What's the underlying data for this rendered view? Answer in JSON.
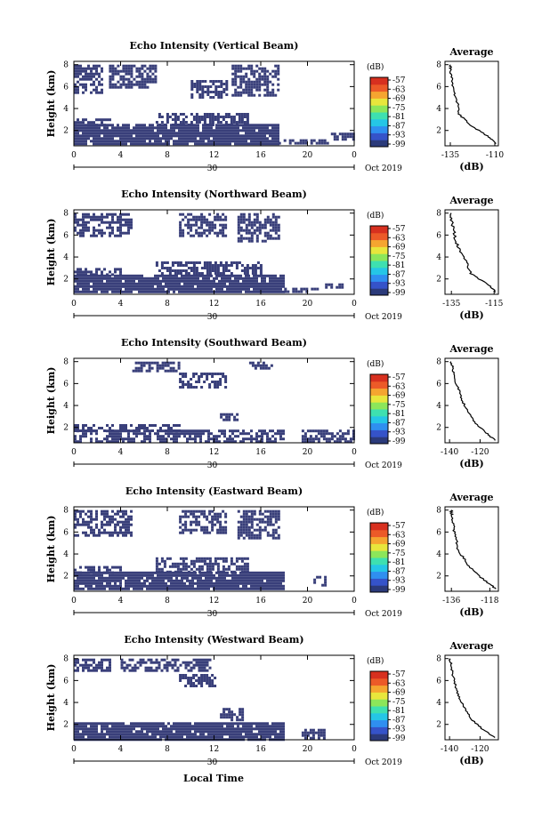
{
  "figure": {
    "xlabel": "Local Time",
    "colors": [
      "#2b3a7a",
      "#3553c9",
      "#2f8ff0",
      "#25c6e6",
      "#3ee0b0",
      "#8ce65a",
      "#e8e63c",
      "#f5a530",
      "#ec5a28",
      "#d7301f"
    ],
    "background": "#ffffff"
  },
  "chart_data": [
    {
      "type": "heatmap",
      "title": "Echo Intensity (Vertical Beam)",
      "ylabel": "Height (km)",
      "x_ticks": [
        "0",
        "4",
        "8",
        "12",
        "16",
        "20",
        "0"
      ],
      "x_range": [
        0,
        24
      ],
      "y_ticks": [
        "2",
        "4",
        "6",
        "8"
      ],
      "y_range": [
        0.6,
        8.3
      ],
      "date_label": "30",
      "month_label": "Oct 2019",
      "colorbar": {
        "label": "(dB)",
        "ticks": [
          "-57",
          "-63",
          "-69",
          "-75",
          "-81",
          "-87",
          "-93",
          "-99"
        ]
      },
      "fill_color": "#393f7a",
      "echo_layers": [
        {
          "t_start": 0,
          "t_end": 17.5,
          "h_bottom": 0.7,
          "h_top": 2.6
        },
        {
          "t_start": 0,
          "t_end": 3,
          "h_bottom": 2.6,
          "h_top": 3.1
        },
        {
          "t_start": 7,
          "t_end": 15,
          "h_bottom": 2.6,
          "h_top": 3.6
        },
        {
          "t_start": 17.5,
          "t_end": 22,
          "h_bottom": 0.8,
          "h_top": 1.2
        },
        {
          "t_start": 22,
          "t_end": 24,
          "h_bottom": 1.3,
          "h_top": 1.8
        },
        {
          "t_start": 0,
          "t_end": 2.5,
          "h_bottom": 5.5,
          "h_top": 8.0
        },
        {
          "t_start": 3,
          "t_end": 7,
          "h_bottom": 6.0,
          "h_top": 8.0
        },
        {
          "t_start": 10,
          "t_end": 13,
          "h_bottom": 5.0,
          "h_top": 6.6
        },
        {
          "t_start": 13.5,
          "t_end": 17.5,
          "h_bottom": 5.2,
          "h_top": 8.0
        }
      ],
      "avg_profile": {
        "title": "Average",
        "xlabel": "(dB)",
        "x_ticks": [
          "-135",
          "-110"
        ],
        "x_range": [
          -138,
          -108
        ],
        "heights": [
          0.8,
          1.5,
          2.5,
          3.5,
          4.5,
          5.5,
          6.5,
          7.5,
          8.0
        ],
        "values": [
          -109,
          -114,
          -124,
          -130,
          -131,
          -133,
          -134,
          -135,
          -135
        ]
      }
    },
    {
      "type": "heatmap",
      "title": "Echo Intensity (Northward Beam)",
      "ylabel": "Height (km)",
      "x_ticks": [
        "0",
        "4",
        "8",
        "12",
        "16",
        "20",
        "0"
      ],
      "x_range": [
        0,
        24
      ],
      "y_ticks": [
        "2",
        "4",
        "6",
        "8"
      ],
      "y_range": [
        0.6,
        8.3
      ],
      "date_label": "30",
      "month_label": "Oct 2019",
      "colorbar": {
        "label": "(dB)",
        "ticks": [
          "-57",
          "-63",
          "-69",
          "-75",
          "-81",
          "-87",
          "-93",
          "-99"
        ]
      },
      "fill_color": "#393f7a",
      "echo_layers": [
        {
          "t_start": 0,
          "t_end": 18,
          "h_bottom": 0.7,
          "h_top": 2.4
        },
        {
          "t_start": 0,
          "t_end": 4,
          "h_bottom": 2.4,
          "h_top": 3.0
        },
        {
          "t_start": 7,
          "t_end": 16,
          "h_bottom": 2.4,
          "h_top": 3.6
        },
        {
          "t_start": 18,
          "t_end": 21,
          "h_bottom": 0.8,
          "h_top": 1.2
        },
        {
          "t_start": 21.5,
          "t_end": 23,
          "h_bottom": 1.2,
          "h_top": 1.6
        },
        {
          "t_start": 0,
          "t_end": 5,
          "h_bottom": 6.0,
          "h_top": 8.0
        },
        {
          "t_start": 9,
          "t_end": 13,
          "h_bottom": 6.0,
          "h_top": 8.0
        },
        {
          "t_start": 14,
          "t_end": 17.5,
          "h_bottom": 5.5,
          "h_top": 8.0
        }
      ],
      "avg_profile": {
        "title": "Average",
        "xlabel": "(dB)",
        "x_ticks": [
          "-135",
          "-115"
        ],
        "x_range": [
          -138,
          -113
        ],
        "heights": [
          0.8,
          1.5,
          2.5,
          3.5,
          4.5,
          5.5,
          6.5,
          7.5,
          8.0
        ],
        "values": [
          -114,
          -118,
          -126,
          -128,
          -131,
          -133,
          -134,
          -135,
          -135
        ]
      }
    },
    {
      "type": "heatmap",
      "title": "Echo Intensity (Southward Beam)",
      "ylabel": "Height (km)",
      "x_ticks": [
        "0",
        "4",
        "8",
        "12",
        "16",
        "20",
        "0"
      ],
      "x_range": [
        0,
        24
      ],
      "y_ticks": [
        "2",
        "4",
        "6",
        "8"
      ],
      "y_range": [
        0.6,
        8.3
      ],
      "date_label": "30",
      "month_label": "Oct 2019",
      "colorbar": {
        "label": "(dB)",
        "ticks": [
          "-57",
          "-63",
          "-69",
          "-75",
          "-81",
          "-87",
          "-93",
          "-99"
        ]
      },
      "fill_color": "#393f7a",
      "echo_layers": [
        {
          "t_start": 0,
          "t_end": 18,
          "h_bottom": 0.7,
          "h_top": 1.8
        },
        {
          "t_start": 0,
          "t_end": 9,
          "h_bottom": 1.8,
          "h_top": 2.3
        },
        {
          "t_start": 12.5,
          "t_end": 14,
          "h_bottom": 2.8,
          "h_top": 3.3
        },
        {
          "t_start": 19.5,
          "t_end": 24,
          "h_bottom": 0.8,
          "h_top": 1.8
        },
        {
          "t_start": 5,
          "t_end": 9,
          "h_bottom": 7.2,
          "h_top": 8.0
        },
        {
          "t_start": 9,
          "t_end": 13,
          "h_bottom": 5.6,
          "h_top": 7.0
        },
        {
          "t_start": 15,
          "t_end": 17,
          "h_bottom": 7.4,
          "h_top": 8.0
        }
      ],
      "avg_profile": {
        "title": "Average",
        "xlabel": "(dB)",
        "x_ticks": [
          "-140",
          "-120"
        ],
        "x_range": [
          -143,
          -108
        ],
        "heights": [
          0.8,
          1.5,
          2.5,
          3.5,
          4.5,
          5.5,
          6.5,
          7.5,
          8.0
        ],
        "values": [
          -110,
          -116,
          -124,
          -128,
          -132,
          -134,
          -137,
          -138,
          -139
        ]
      }
    },
    {
      "type": "heatmap",
      "title": "Echo Intensity (Eastward Beam)",
      "ylabel": "Height (km)",
      "x_ticks": [
        "0",
        "4",
        "8",
        "12",
        "16",
        "20",
        "0"
      ],
      "x_range": [
        0,
        24
      ],
      "y_ticks": [
        "2",
        "4",
        "6",
        "8"
      ],
      "y_range": [
        0.6,
        8.3
      ],
      "date_label": "30",
      "month_label": "Oct 2019",
      "colorbar": {
        "label": "(dB)",
        "ticks": [
          "-57",
          "-63",
          "-69",
          "-75",
          "-81",
          "-87",
          "-93",
          "-99"
        ]
      },
      "fill_color": "#393f7a",
      "echo_layers": [
        {
          "t_start": 0,
          "t_end": 18,
          "h_bottom": 0.7,
          "h_top": 2.4
        },
        {
          "t_start": 0,
          "t_end": 4,
          "h_bottom": 2.4,
          "h_top": 2.9
        },
        {
          "t_start": 7,
          "t_end": 15,
          "h_bottom": 2.4,
          "h_top": 3.7
        },
        {
          "t_start": 20.5,
          "t_end": 21.5,
          "h_bottom": 1.1,
          "h_top": 2.0
        },
        {
          "t_start": 0,
          "t_end": 5,
          "h_bottom": 5.8,
          "h_top": 8.0
        },
        {
          "t_start": 9,
          "t_end": 13,
          "h_bottom": 6.0,
          "h_top": 8.0
        },
        {
          "t_start": 14,
          "t_end": 17.5,
          "h_bottom": 5.5,
          "h_top": 8.0
        }
      ],
      "avg_profile": {
        "title": "Average",
        "xlabel": "(dB)",
        "x_ticks": [
          "-136",
          "-118"
        ],
        "x_range": [
          -139,
          -114
        ],
        "heights": [
          0.8,
          1.5,
          2.5,
          3.5,
          4.5,
          5.5,
          6.5,
          7.5,
          8.0
        ],
        "values": [
          -115,
          -120,
          -126,
          -130,
          -133,
          -134,
          -135,
          -136,
          -136
        ]
      }
    },
    {
      "type": "heatmap",
      "title": "Echo Intensity (Westward Beam)",
      "ylabel": "Height (km)",
      "x_ticks": [
        "0",
        "4",
        "8",
        "12",
        "16",
        "20",
        "0"
      ],
      "x_range": [
        0,
        24
      ],
      "y_ticks": [
        "2",
        "4",
        "6",
        "8"
      ],
      "y_range": [
        0.6,
        8.3
      ],
      "date_label": "30",
      "month_label": "Oct 2019",
      "colorbar": {
        "label": "(dB)",
        "ticks": [
          "-57",
          "-63",
          "-69",
          "-75",
          "-81",
          "-87",
          "-93",
          "-99"
        ]
      },
      "fill_color": "#393f7a",
      "echo_layers": [
        {
          "t_start": 0,
          "t_end": 18,
          "h_bottom": 0.7,
          "h_top": 2.2
        },
        {
          "t_start": 12.5,
          "t_end": 14.5,
          "h_bottom": 2.3,
          "h_top": 3.5
        },
        {
          "t_start": 19.5,
          "t_end": 21.5,
          "h_bottom": 0.8,
          "h_top": 1.6
        },
        {
          "t_start": 0,
          "t_end": 3,
          "h_bottom": 6.8,
          "h_top": 8.0
        },
        {
          "t_start": 4,
          "t_end": 12,
          "h_bottom": 6.8,
          "h_top": 8.0
        },
        {
          "t_start": 9,
          "t_end": 12,
          "h_bottom": 5.6,
          "h_top": 6.6
        }
      ],
      "avg_profile": {
        "title": "Average",
        "xlabel": "(dB)",
        "x_ticks": [
          "-140",
          "-120"
        ],
        "x_range": [
          -143,
          -108
        ],
        "heights": [
          0.8,
          1.5,
          2.5,
          3.5,
          4.5,
          5.5,
          6.5,
          7.5,
          8.0
        ],
        "values": [
          -110,
          -118,
          -126,
          -130,
          -134,
          -136,
          -138,
          -139,
          -140
        ]
      }
    }
  ]
}
